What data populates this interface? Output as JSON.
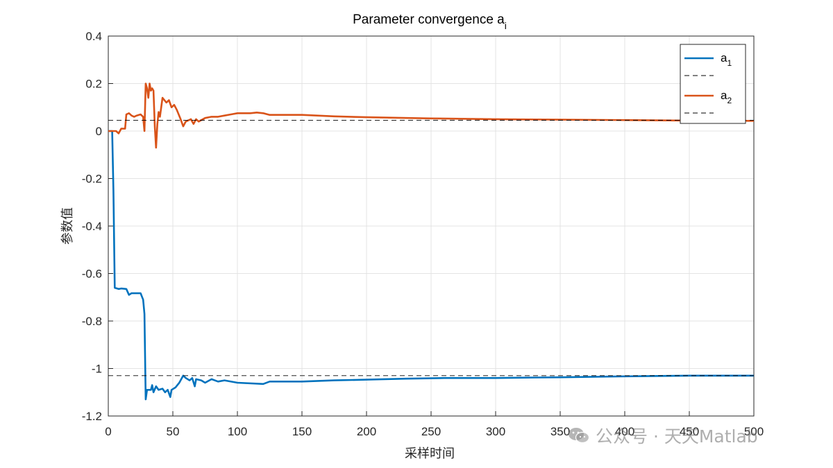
{
  "chart_data": {
    "type": "line",
    "title": "Parameter convergence a",
    "title_subscript": "i",
    "xlabel": "采样时间",
    "ylabel": "参数值",
    "xlim": [
      0,
      500
    ],
    "ylim": [
      -1.2,
      0.4
    ],
    "grid": true,
    "legend_position": "top-right",
    "x_ticks": [
      0,
      50,
      100,
      150,
      200,
      250,
      300,
      350,
      400,
      450,
      500
    ],
    "y_ticks": [
      0.4,
      0.2,
      0,
      -0.2,
      -0.4,
      -0.6,
      -0.8,
      -1,
      -1.2
    ],
    "series": [
      {
        "name": "a",
        "subscript": "1",
        "color": "#0072BD",
        "style": "solid",
        "points": [
          [
            0,
            0
          ],
          [
            3,
            0
          ],
          [
            4,
            -0.25
          ],
          [
            5,
            -0.66
          ],
          [
            8,
            -0.665
          ],
          [
            10,
            -0.663
          ],
          [
            14,
            -0.665
          ],
          [
            16,
            -0.69
          ],
          [
            18,
            -0.683
          ],
          [
            25,
            -0.683
          ],
          [
            27,
            -0.71
          ],
          [
            28,
            -0.77
          ],
          [
            29,
            -1.13
          ],
          [
            30,
            -1.09
          ],
          [
            33,
            -1.09
          ],
          [
            34,
            -1.07
          ],
          [
            35,
            -1.1
          ],
          [
            37,
            -1.075
          ],
          [
            39,
            -1.09
          ],
          [
            42,
            -1.085
          ],
          [
            44,
            -1.1
          ],
          [
            46,
            -1.09
          ],
          [
            48,
            -1.12
          ],
          [
            49,
            -1.09
          ],
          [
            52,
            -1.08
          ],
          [
            55,
            -1.06
          ],
          [
            58,
            -1.03
          ],
          [
            60,
            -1.04
          ],
          [
            63,
            -1.05
          ],
          [
            65,
            -1.04
          ],
          [
            67,
            -1.075
          ],
          [
            68,
            -1.045
          ],
          [
            72,
            -1.05
          ],
          [
            75,
            -1.06
          ],
          [
            80,
            -1.045
          ],
          [
            85,
            -1.055
          ],
          [
            90,
            -1.05
          ],
          [
            100,
            -1.06
          ],
          [
            120,
            -1.065
          ],
          [
            125,
            -1.055
          ],
          [
            150,
            -1.055
          ],
          [
            175,
            -1.05
          ],
          [
            200,
            -1.047
          ],
          [
            230,
            -1.043
          ],
          [
            260,
            -1.04
          ],
          [
            300,
            -1.04
          ],
          [
            330,
            -1.038
          ],
          [
            350,
            -1.037
          ],
          [
            400,
            -1.033
          ],
          [
            450,
            -1.03
          ],
          [
            500,
            -1.03
          ]
        ]
      },
      {
        "name": "",
        "color": "#000000",
        "style": "dashed",
        "y_constant": -1.03
      },
      {
        "name": "a",
        "subscript": "2",
        "color": "#D95319",
        "style": "solid",
        "points": [
          [
            0,
            0
          ],
          [
            6,
            0
          ],
          [
            8,
            -0.01
          ],
          [
            10,
            0.01
          ],
          [
            13,
            0.01
          ],
          [
            14,
            0.07
          ],
          [
            16,
            0.075
          ],
          [
            18,
            0.065
          ],
          [
            20,
            0.06
          ],
          [
            22,
            0.065
          ],
          [
            25,
            0.07
          ],
          [
            27,
            0.06
          ],
          [
            28,
            0.0
          ],
          [
            29,
            0.2
          ],
          [
            30,
            0.18
          ],
          [
            31,
            0.14
          ],
          [
            32,
            0.2
          ],
          [
            33,
            0.17
          ],
          [
            34,
            0.18
          ],
          [
            35,
            0.17
          ],
          [
            36,
            0.02
          ],
          [
            37,
            -0.07
          ],
          [
            38,
            0.03
          ],
          [
            39,
            0.08
          ],
          [
            40,
            0.06
          ],
          [
            42,
            0.14
          ],
          [
            45,
            0.12
          ],
          [
            47,
            0.13
          ],
          [
            49,
            0.1
          ],
          [
            51,
            0.11
          ],
          [
            53,
            0.09
          ],
          [
            56,
            0.05
          ],
          [
            58,
            0.02
          ],
          [
            60,
            0.04
          ],
          [
            64,
            0.05
          ],
          [
            66,
            0.03
          ],
          [
            68,
            0.05
          ],
          [
            70,
            0.04
          ],
          [
            75,
            0.055
          ],
          [
            80,
            0.06
          ],
          [
            85,
            0.06
          ],
          [
            90,
            0.065
          ],
          [
            95,
            0.07
          ],
          [
            100,
            0.075
          ],
          [
            110,
            0.075
          ],
          [
            115,
            0.078
          ],
          [
            120,
            0.075
          ],
          [
            125,
            0.068
          ],
          [
            150,
            0.068
          ],
          [
            175,
            0.062
          ],
          [
            200,
            0.058
          ],
          [
            250,
            0.053
          ],
          [
            300,
            0.05
          ],
          [
            350,
            0.048
          ],
          [
            400,
            0.046
          ],
          [
            450,
            0.044
          ],
          [
            500,
            0.043
          ]
        ]
      },
      {
        "name": "",
        "color": "#000000",
        "style": "dashed",
        "y_constant": 0.045
      }
    ]
  },
  "watermark": {
    "icon": "wechat-icon",
    "text": "公众号 · 天天Matlab"
  }
}
